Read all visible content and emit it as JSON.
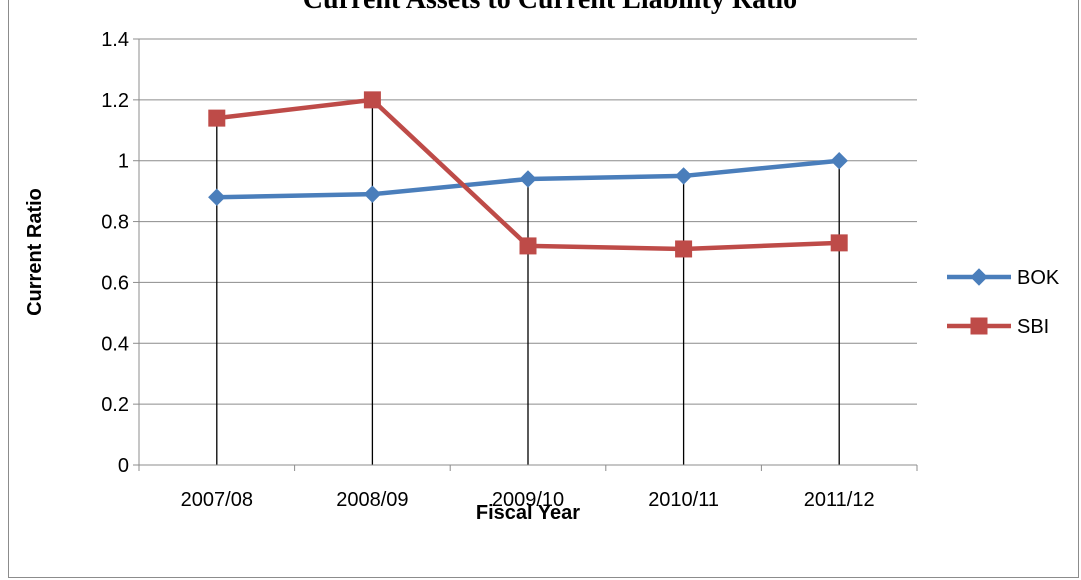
{
  "chart_data": {
    "type": "line",
    "title": "Current Assets to Current Liability Ratio",
    "xlabel": "Fiscal Year",
    "ylabel": "Current Ratio",
    "categories": [
      "2007/08",
      "2008/09",
      "2009/10",
      "2010/11",
      "2011/12"
    ],
    "ylim": [
      0,
      1.4
    ],
    "yticks": [
      "0",
      "0.2",
      "0.4",
      "0.6",
      "0.8",
      "1",
      "1.2",
      "1.4"
    ],
    "grid": true,
    "drop_lines": true,
    "legend_position": "right",
    "series": [
      {
        "name": "BOK",
        "values": [
          0.88,
          0.89,
          0.94,
          0.95,
          1.0
        ],
        "color": "#4a7ebb",
        "marker": "diamond"
      },
      {
        "name": "SBI",
        "values": [
          1.14,
          1.2,
          0.72,
          0.71,
          0.73
        ],
        "color": "#be4b48",
        "marker": "square"
      }
    ]
  }
}
